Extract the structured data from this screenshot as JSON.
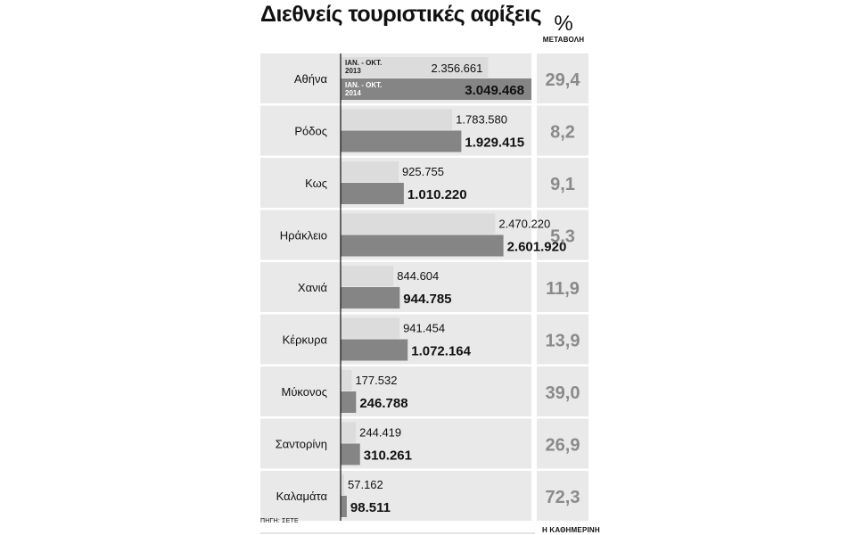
{
  "chart_data": {
    "type": "bar",
    "orientation": "horizontal",
    "title": "Διεθνείς τουριστικές αφίξεις",
    "categories": [
      "Αθήνα",
      "Ρόδος",
      "Κως",
      "Ηράκλειο",
      "Χανιά",
      "Κέρκυρα",
      "Μύκονος",
      "Σαντορίνη",
      "Καλαμάτα"
    ],
    "series": [
      {
        "name": "ΙΑΝ. - ΟΚΤ. 2013",
        "values": [
          2356661,
          1783580,
          925755,
          2470220,
          844604,
          941454,
          177532,
          244419,
          57162
        ],
        "labels": [
          "2.356.661",
          "1.783.580",
          "925.755",
          "2.470.220",
          "844.604",
          "941.454",
          "177.532",
          "244.419",
          "57.162"
        ],
        "color": "#dcdcdc"
      },
      {
        "name": "ΙΑΝ. - ΟΚΤ. 2014",
        "values": [
          3049468,
          1929415,
          1010220,
          2601920,
          944785,
          1072164,
          246788,
          310261,
          98511
        ],
        "labels": [
          "3.049.468",
          "1.929.415",
          "1.010.220",
          "2.601.920",
          "944.785",
          "1.072.164",
          "246.788",
          "310.261",
          "98.511"
        ],
        "color": "#858585"
      }
    ],
    "change_header_symbol": "%",
    "change_header_label": "ΜΕΤΑΒΟΛΗ",
    "change_values": [
      "29,4",
      "8,2",
      "9,1",
      "5,3",
      "11,9",
      "13,9",
      "39,0",
      "26,9",
      "72,3"
    ],
    "legend": {
      "series_2013_line1": "ΙΑΝ. - ΟΚΤ.",
      "series_2013_line2": "2013",
      "series_2014_line1": "ΙΑΝ. - ΟΚΤ.",
      "series_2014_line2": "2014"
    },
    "xlim": [
      0,
      3049468
    ],
    "grid": false,
    "legend_placement": "inside first bar pair"
  },
  "source": "ΠΗΓΗ: ΣΕΤΕ",
  "credit": "Η ΚΑΘΗΜΕΡΙΝΗ",
  "colors": {
    "panel": "#e9e9e9",
    "bar_2013": "#dcdcdc",
    "bar_2014": "#858585",
    "pct_text": "#8a8a8a"
  }
}
